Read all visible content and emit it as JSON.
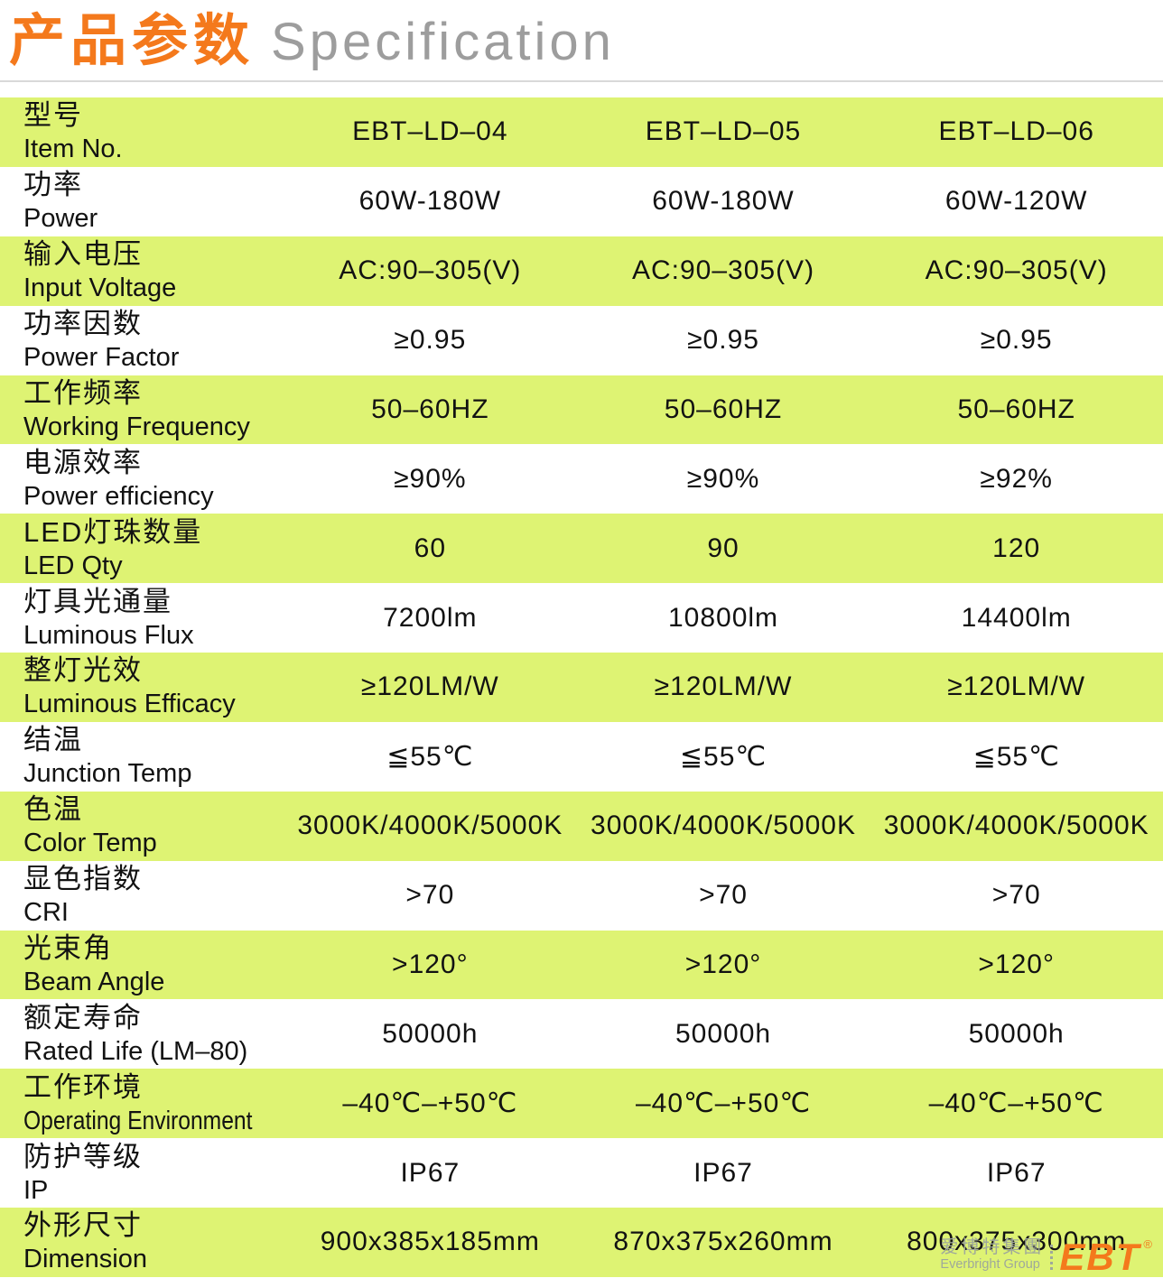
{
  "header": {
    "title_zh": "产品参数",
    "title_en": "Specification"
  },
  "colors": {
    "row_green": "#def373",
    "accent_orange": "#f4791c",
    "title_gray": "#9d9d9d",
    "logo_gray": "#9fa89b",
    "divider_gray": "#d9d9d9",
    "text_black": "#121212"
  },
  "table": {
    "rows": [
      {
        "zh": "型号",
        "en": "Item No.",
        "values": [
          "EBT–LD–04",
          "EBT–LD–05",
          "EBT–LD–06"
        ]
      },
      {
        "zh": "功率",
        "en": "Power",
        "values": [
          "60W-180W",
          "60W-180W",
          "60W-120W"
        ]
      },
      {
        "zh": "输入电压",
        "en": "Input Voltage",
        "values": [
          "AC:90–305(V)",
          "AC:90–305(V)",
          "AC:90–305(V)"
        ]
      },
      {
        "zh": "功率因数",
        "en": "Power Factor",
        "values": [
          "≥0.95",
          "≥0.95",
          "≥0.95"
        ]
      },
      {
        "zh": "工作频率",
        "en": "Working Frequency",
        "values": [
          "50–60HZ",
          "50–60HZ",
          "50–60HZ"
        ]
      },
      {
        "zh": "电源效率",
        "en": "Power efficiency",
        "values": [
          "≥90%",
          "≥90%",
          "≥92%"
        ]
      },
      {
        "zh": "LED灯珠数量",
        "en": "LED Qty",
        "values": [
          "60",
          "90",
          "120"
        ]
      },
      {
        "zh": "灯具光通量",
        "en": "Luminous Flux",
        "values": [
          "7200lm",
          "10800lm",
          "14400lm"
        ]
      },
      {
        "zh": "整灯光效",
        "en": "Luminous Efficacy",
        "values": [
          "≥120LM/W",
          "≥120LM/W",
          "≥120LM/W"
        ]
      },
      {
        "zh": "结温",
        "en": "Junction Temp",
        "values": [
          "≦55℃",
          "≦55℃",
          "≦55℃"
        ]
      },
      {
        "zh": "色温",
        "en": "Color Temp",
        "values": [
          "3000K/4000K/5000K",
          "3000K/4000K/5000K",
          "3000K/4000K/5000K"
        ]
      },
      {
        "zh": "显色指数",
        "en": "CRI",
        "values": [
          ">70",
          ">70",
          ">70"
        ]
      },
      {
        "zh": "光束角",
        "en": "Beam Angle",
        "values": [
          ">120°",
          ">120°",
          ">120°"
        ]
      },
      {
        "zh": "额定寿命",
        "en": "Rated Life (LM–80)",
        "values": [
          "50000h",
          "50000h",
          "50000h"
        ]
      },
      {
        "zh": "工作环境",
        "en": "Operating Environment",
        "values": [
          "–40℃–+50℃",
          "–40℃–+50℃",
          "–40℃–+50℃"
        ]
      },
      {
        "zh": "防护等级",
        "en": "IP",
        "values": [
          "IP67",
          "IP67",
          "IP67"
        ]
      },
      {
        "zh": "外形尺寸",
        "en": "Dimension",
        "values": [
          "900x385x185mm",
          "870x375x260mm",
          "800x375x300mm"
        ]
      }
    ]
  },
  "logo": {
    "zh": "爱博特集團",
    "en": "Everbright Group",
    "brand": "EBT",
    "reg": "®"
  }
}
